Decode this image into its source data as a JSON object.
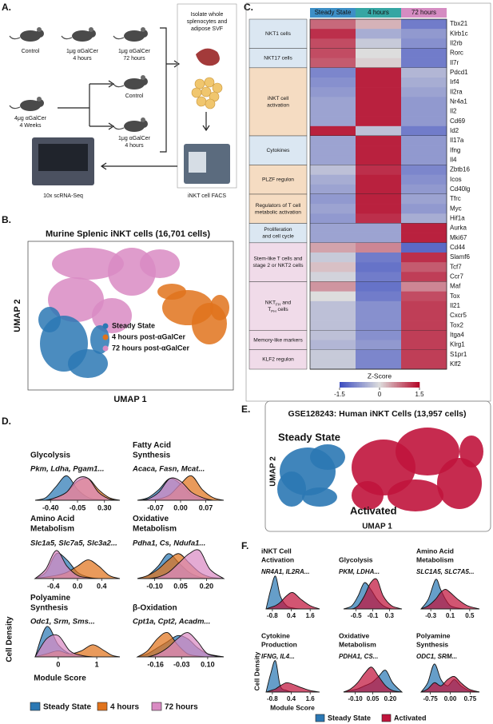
{
  "panel_a": {
    "letter": "A.",
    "top_mice": [
      [
        "Control"
      ],
      [
        "1μg αGalCer",
        "4 hours"
      ],
      [
        "1μg αGalCer",
        "72 hours"
      ]
    ],
    "pretreat": [
      "4μg αGalCer",
      "4 Weeks"
    ],
    "branch_mice": [
      [
        "Control"
      ],
      [
        "1μg αGalCer",
        "4 hours"
      ]
    ],
    "isolate": [
      "Isolate whole",
      "splenocytes and",
      "adipose SVF"
    ],
    "seq": "10x scRNA-Seq",
    "facs": "iNKT cell FACS"
  },
  "panel_b": {
    "letter": "B.",
    "title": "Murine Splenic iNKT cells (16,701 cells)",
    "x_label": "UMAP 1",
    "y_label": "UMAP 2",
    "legend": [
      {
        "name": "Steady State",
        "color": "#2b78b4"
      },
      {
        "name": "4 hours post-αGalCer",
        "color": "#e0731c"
      },
      {
        "name": "72 hours post-αGalCer",
        "color": "#d98bc3"
      }
    ]
  },
  "panel_c": {
    "letter": "C.",
    "columns": [
      {
        "name": "Steady State",
        "color": "#3d8fc6"
      },
      {
        "name": "4 hours",
        "color": "#35a6a3"
      },
      {
        "name": "72 hours",
        "color": "#d58cc2"
      }
    ],
    "groups": [
      {
        "label": [
          "NKT1 cells"
        ],
        "color": "#dbe7f2",
        "genes": [
          "Tbx21",
          "Klrb1c",
          "Il2rb"
        ],
        "z": [
          [
            0.8,
            0.3,
            -1.0
          ],
          [
            1.2,
            -0.5,
            -0.7
          ],
          [
            1.0,
            -0.2,
            -0.8
          ]
        ]
      },
      {
        "label": [
          "NKT17 cells"
        ],
        "color": "#dbe7f2",
        "genes": [
          "Rorc",
          "Il7r"
        ],
        "z": [
          [
            1.0,
            0,
            -1.0
          ],
          [
            0.9,
            0.1,
            -1.0
          ]
        ]
      },
      {
        "label": [
          "iNKT cell",
          "activation"
        ],
        "color": "#f5dcc2",
        "genes": [
          "Pdcd1",
          "Irf4",
          "Il2ra",
          "Nr4a1",
          "Il2",
          "Cd69",
          "Id2"
        ],
        "z": [
          [
            -0.9,
            1.3,
            -0.4
          ],
          [
            -0.8,
            1.3,
            -0.5
          ],
          [
            -0.7,
            1.3,
            -0.6
          ],
          [
            -0.6,
            1.3,
            -0.7
          ],
          [
            -0.6,
            1.3,
            -0.7
          ],
          [
            -0.6,
            1.3,
            -0.7
          ],
          [
            1.3,
            -0.3,
            -1.0
          ]
        ]
      },
      {
        "label": [
          "Cytokines"
        ],
        "color": "#dbe7f2",
        "genes": [
          "Il17a",
          "Ifng",
          "Il4"
        ],
        "z": [
          [
            -0.6,
            1.3,
            -0.7
          ],
          [
            -0.6,
            1.3,
            -0.7
          ],
          [
            -0.6,
            1.3,
            -0.7
          ]
        ]
      },
      {
        "label": [
          "PLZF regulon"
        ],
        "color": "#f5dcc2",
        "genes": [
          "Zbtb16",
          "Icos",
          "Cd40lg"
        ],
        "z": [
          [
            -0.3,
            1.2,
            -0.9
          ],
          [
            -0.5,
            1.3,
            -0.8
          ],
          [
            -0.6,
            1.3,
            -0.7
          ]
        ]
      },
      {
        "label": [
          "Regulators of T cell",
          "metabolic activation"
        ],
        "color": "#f5dcc2",
        "genes": [
          "Tfrc",
          "Myc",
          "Hif1a"
        ],
        "z": [
          [
            -0.7,
            1.3,
            -0.6
          ],
          [
            -0.6,
            1.3,
            -0.7
          ],
          [
            -0.7,
            1.2,
            -0.5
          ]
        ]
      },
      {
        "label": [
          "Proliferation",
          "and cell cycle"
        ],
        "color": "#dbe7f2",
        "genes": [
          "Aurka",
          "Mki67"
        ],
        "z": [
          [
            -0.6,
            -0.6,
            1.3
          ],
          [
            -0.6,
            -0.6,
            1.3
          ]
        ]
      },
      {
        "label": [
          "Stem-like T cells and",
          "stage 2 or NKT2 cells"
        ],
        "color": "#f0dbe9",
        "genes": [
          "Cd44",
          "Slamf6",
          "Tcf7",
          "Ccr7"
        ],
        "z": [
          [
            0.4,
            0.6,
            -1.2
          ],
          [
            -0.2,
            -1.0,
            1.2
          ],
          [
            0.2,
            -1.1,
            0.9
          ],
          [
            -0.1,
            -1.0,
            1.1
          ]
        ]
      },
      {
        "label": [
          [
            {
              "text": "NKT"
            },
            {
              "text": "FH",
              "sub": true
            },
            {
              "text": " and"
            }
          ],
          [
            {
              "text": "T"
            },
            {
              "text": "FH",
              "sub": true
            },
            {
              "text": " cells"
            }
          ]
        ],
        "color": "#f0dbe9",
        "genes": [
          "Maf",
          "Tox",
          "Il21",
          "Cxcr5",
          "Tox2"
        ],
        "z": [
          [
            0.5,
            -1.1,
            0.6
          ],
          [
            0,
            -1.0,
            1.0
          ],
          [
            -0.3,
            -0.8,
            1.1
          ],
          [
            -0.3,
            -0.8,
            1.1
          ],
          [
            -0.3,
            -0.8,
            1.1
          ]
        ]
      },
      {
        "label": [
          "Memory-like markers"
        ],
        "color": "#f0dbe9",
        "genes": [
          "Itga4",
          "Klrg1"
        ],
        "z": [
          [
            -0.3,
            -0.8,
            1.1
          ],
          [
            -0.4,
            -0.7,
            1.1
          ]
        ]
      },
      {
        "label": [
          "KLF2 regulon"
        ],
        "color": "#f0dbe9",
        "genes": [
          "S1pr1",
          "Klf2"
        ],
        "z": [
          [
            -0.2,
            -0.9,
            1.1
          ],
          [
            -0.2,
            -0.9,
            1.1
          ]
        ]
      }
    ],
    "colorbar": {
      "title": "Z-Score",
      "zlim": [
        -1.5,
        1.5
      ],
      "ticks": [
        -1.5,
        0,
        1.5
      ],
      "colormap": [
        "#3b4cc0",
        "#dddddd",
        "#b40426"
      ]
    }
  },
  "panel_d": {
    "letter": "D.",
    "y_label": "Cell Density",
    "x_label": "Module Score",
    "density_ylim": [
      0,
      10
    ],
    "series": [
      {
        "name": "Steady State",
        "color": "#2b78b4"
      },
      {
        "name": "4 hours",
        "color": "#e0731c"
      },
      {
        "name": "72 hours",
        "color": "#d98bc3"
      }
    ],
    "plots": [
      {
        "title": [
          "Glycolysis"
        ],
        "genes": "Pkm, Ldha, Pgam1...",
        "xlim": [
          -0.6,
          0.5
        ],
        "xticks": [
          {
            "value": -0.4,
            "label": "-0.40"
          },
          -0.05,
          {
            "value": 0.3,
            "label": "0.30"
          }
        ],
        "x": [
          -0.6,
          -0.46,
          -0.33,
          -0.19,
          -0.05,
          0.09,
          0.22,
          0.36,
          0.5
        ],
        "values": [
          [
            0,
            1,
            5,
            9,
            4,
            1,
            0.3,
            0,
            0
          ],
          [
            0,
            0,
            1,
            3,
            7,
            8,
            4,
            1,
            0
          ],
          [
            0,
            0,
            1,
            3,
            8,
            8,
            3,
            0.5,
            0
          ]
        ]
      },
      {
        "title": [
          "Fatty Acid",
          "Synthesis"
        ],
        "genes": "Acaca, Fasn, Mcat...",
        "xlim": [
          -0.12,
          0.12
        ],
        "xticks": [
          -0.07,
          {
            "value": 0,
            "label": "0.00"
          },
          0.07
        ],
        "x": [
          -0.12,
          -0.09,
          -0.06,
          -0.03,
          0,
          0.03,
          0.06,
          0.09,
          0.12
        ],
        "values": [
          [
            0,
            1,
            4,
            8,
            6,
            2,
            0.5,
            0,
            0
          ],
          [
            0,
            0,
            0.5,
            2,
            6,
            9,
            4,
            1,
            0
          ],
          [
            0,
            0.5,
            3,
            8,
            7,
            3,
            1,
            0,
            0
          ]
        ]
      },
      {
        "title": [
          "Amino Acid",
          "Metabolism"
        ],
        "genes": "Slc1a5, Slc7a5, Slc3a2...",
        "xlim": [
          -0.7,
          0.7
        ],
        "xticks": [
          -0.4,
          {
            "value": 0,
            "label": "0.0"
          },
          0.4
        ],
        "x": [
          -0.7,
          -0.525,
          -0.35,
          -0.175,
          0,
          0.175,
          0.35,
          0.525,
          0.7
        ],
        "values": [
          [
            0,
            2,
            8,
            6,
            2,
            0.5,
            0,
            0,
            0
          ],
          [
            0,
            0.5,
            1,
            2,
            4,
            6,
            4,
            1,
            0
          ],
          [
            0,
            3,
            9,
            4,
            1,
            0.3,
            0,
            0,
            0
          ]
        ]
      },
      {
        "title": [
          "Oxidative",
          "Metabolism"
        ],
        "genes": "Pdha1, Cs, Ndufa1...",
        "xlim": [
          -0.2,
          0.3
        ],
        "xticks": [
          {
            "value": -0.1,
            "label": "-0.10"
          },
          0.05,
          {
            "value": 0.2,
            "label": "0.20"
          }
        ],
        "x": [
          -0.2,
          -0.14,
          -0.08,
          -0.02,
          0.04,
          0.1,
          0.16,
          0.22,
          0.3
        ],
        "values": [
          [
            0,
            1,
            4,
            8,
            5,
            2,
            0.5,
            0,
            0
          ],
          [
            0,
            1,
            3,
            6,
            8,
            5,
            2,
            0.5,
            0
          ],
          [
            0,
            0,
            0.5,
            2,
            5,
            8,
            9,
            3,
            0
          ]
        ]
      },
      {
        "title": [
          "Polyamine",
          "Synthesis"
        ],
        "genes": "Odc1, Srm, Sms...",
        "xlim": [
          -0.6,
          1.6
        ],
        "xticks": [
          0,
          1
        ],
        "x": [
          -0.6,
          -0.3,
          0,
          0.3,
          0.6,
          0.9,
          1.2,
          1.4,
          1.6
        ],
        "values": [
          [
            0,
            10,
            4,
            1,
            0.3,
            0,
            0,
            0,
            0
          ],
          [
            0,
            1,
            2,
            1,
            2,
            4,
            2,
            0.5,
            0
          ],
          [
            0,
            6,
            7,
            2,
            0.5,
            0,
            0,
            0,
            0
          ]
        ]
      },
      {
        "title": [
          "β-Oxidation"
        ],
        "genes": "Cpt1a, Cpt2, Acadm...",
        "xlim": [
          -0.25,
          0.18
        ],
        "xticks": [
          -0.16,
          -0.03,
          {
            "value": 0.1,
            "label": "0.10"
          }
        ],
        "x": [
          -0.25,
          -0.2,
          -0.15,
          -0.1,
          -0.05,
          0,
          0.05,
          0.1,
          0.18
        ],
        "values": [
          [
            0,
            1,
            3,
            5,
            7,
            6,
            3,
            1,
            0
          ],
          [
            0,
            2,
            6,
            8,
            4,
            1,
            0.3,
            0,
            0
          ],
          [
            0,
            0,
            1,
            3,
            6,
            8,
            5,
            1,
            0
          ]
        ]
      }
    ]
  },
  "panel_e": {
    "letter": "E.",
    "title": "GSE128243: Human iNKT Cells (13,957 cells)",
    "x_label": "UMAP 1",
    "y_label": "UMAP 2",
    "labels": [
      {
        "name": "Steady State",
        "color": "#2b78b4"
      },
      {
        "name": "Activated",
        "color": "#c0143c"
      }
    ]
  },
  "panel_f": {
    "letter": "F.",
    "y_label": "Cell Density",
    "x_label": "Module Score",
    "density_ylim": [
      0,
      10
    ],
    "series": [
      {
        "name": "Steady State",
        "color": "#2b78b4"
      },
      {
        "name": "Activated",
        "color": "#c0143c"
      }
    ],
    "plots": [
      {
        "title": [
          "iNKT Cell",
          "Activation"
        ],
        "genes": "NR4A1, IL2RA...",
        "xlim": [
          -1.2,
          2.2
        ],
        "xticks": [
          -0.8,
          0.4,
          1.6
        ],
        "x": [
          -1.2,
          -0.9,
          -0.6,
          -0.3,
          0.1,
          0.5,
          1.0,
          1.6,
          2.2
        ],
        "values": [
          [
            0,
            6,
            10,
            4,
            1,
            0.3,
            0,
            0,
            0
          ],
          [
            0,
            0.5,
            1,
            2,
            4,
            5,
            3,
            1,
            0
          ]
        ]
      },
      {
        "title": [
          "Glycolysis"
        ],
        "genes": "PKM, LDHA...",
        "xlim": [
          -0.8,
          0.6
        ],
        "xticks": [
          -0.5,
          -0.1,
          0.3
        ],
        "x": [
          -0.8,
          -0.6,
          -0.45,
          -0.3,
          -0.15,
          0,
          0.15,
          0.35,
          0.6
        ],
        "values": [
          [
            0,
            1,
            4,
            8,
            6,
            3,
            1,
            0,
            0
          ],
          [
            0,
            0,
            1,
            4,
            8,
            9,
            4,
            1,
            0
          ]
        ]
      },
      {
        "title": [
          "Amino Acid",
          "Metabolism"
        ],
        "genes": "SLC1A5, SLC7A5...",
        "xlim": [
          -0.5,
          0.7
        ],
        "xticks": [
          -0.3,
          0.1,
          0.5
        ],
        "x": [
          -0.5,
          -0.35,
          -0.2,
          -0.1,
          0,
          0.1,
          0.25,
          0.45,
          0.7
        ],
        "values": [
          [
            0,
            3,
            9,
            6,
            3,
            1,
            0.3,
            0,
            0
          ],
          [
            0,
            1,
            3,
            5,
            6,
            5,
            3,
            1,
            0
          ]
        ]
      },
      {
        "title": [
          "Cytokine",
          "Production"
        ],
        "genes": "IFNG, IL4...",
        "xlim": [
          -1.2,
          2.2
        ],
        "xticks": [
          -0.8,
          0.4,
          1.6
        ],
        "x": [
          -1.2,
          -0.9,
          -0.6,
          -0.3,
          0.1,
          0.5,
          1.0,
          1.6,
          2.2
        ],
        "values": [
          [
            0,
            6,
            10,
            2,
            0.5,
            0,
            0,
            0,
            0
          ],
          [
            0,
            0.5,
            1,
            2,
            3,
            2.5,
            1.5,
            0.5,
            0
          ]
        ]
      },
      {
        "title": [
          "Oxidative",
          "Metabolism"
        ],
        "genes": "PDHA1, CS...",
        "xlim": [
          -0.2,
          0.3
        ],
        "xticks": [
          {
            "value": -0.1,
            "label": "-0.10"
          },
          0.05,
          {
            "value": 0.2,
            "label": "0.20"
          }
        ],
        "x": [
          -0.2,
          -0.14,
          -0.08,
          -0.02,
          0.04,
          0.1,
          0.16,
          0.22,
          0.3
        ],
        "values": [
          [
            0,
            0.5,
            1,
            2,
            3,
            5,
            7,
            3,
            0
          ],
          [
            0,
            1,
            3,
            6,
            8,
            5,
            2,
            0.5,
            0
          ]
        ]
      },
      {
        "title": [
          "Polyamine",
          "Synthesis"
        ],
        "genes": "ODC1, SRM...",
        "xlim": [
          -1.1,
          1.1
        ],
        "xticks": [
          -0.75,
          {
            "value": 0,
            "label": "0.00"
          },
          0.75
        ],
        "x": [
          -1.1,
          -0.85,
          -0.6,
          -0.35,
          -0.1,
          0.15,
          0.4,
          0.7,
          1.1
        ],
        "values": [
          [
            0,
            3,
            9,
            4,
            2,
            4,
            2,
            0.5,
            0
          ],
          [
            0,
            1,
            3,
            2,
            4,
            5,
            3,
            1,
            0
          ]
        ]
      }
    ]
  }
}
